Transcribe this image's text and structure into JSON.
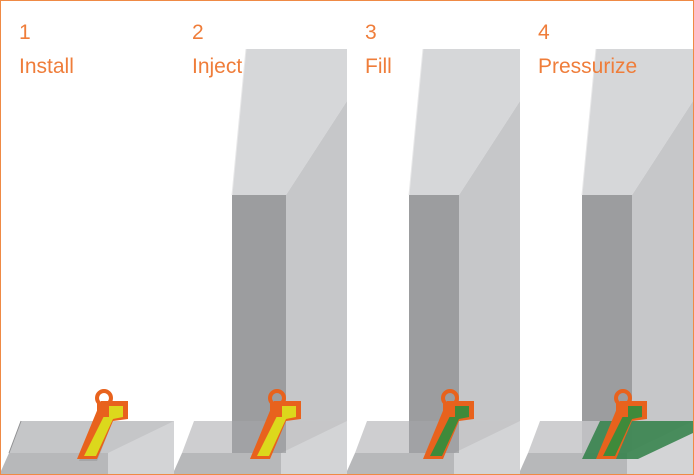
{
  "colors": {
    "border": "#ef8a45",
    "label_text": "#ef7d3a",
    "wall_light": "#d4d5d7",
    "wall_mid": "#c0c1c3",
    "wall_dark": "#98999b",
    "slab_top": "#c5c6c8",
    "slab_side": "#b2b3b5",
    "packer_orange": "#e8621d",
    "resin_yellow": "#dcd81c",
    "resin_green": "#3f8a3a",
    "sealed_green": "#2f7f46"
  },
  "steps": [
    {
      "number": "1",
      "label": "Install",
      "fill": "none"
    },
    {
      "number": "2",
      "label": "Inject",
      "fill": "yellow"
    },
    {
      "number": "3",
      "label": "Fill",
      "fill": "green"
    },
    {
      "number": "4",
      "label": "Pressurize",
      "fill": "green-spread"
    }
  ]
}
